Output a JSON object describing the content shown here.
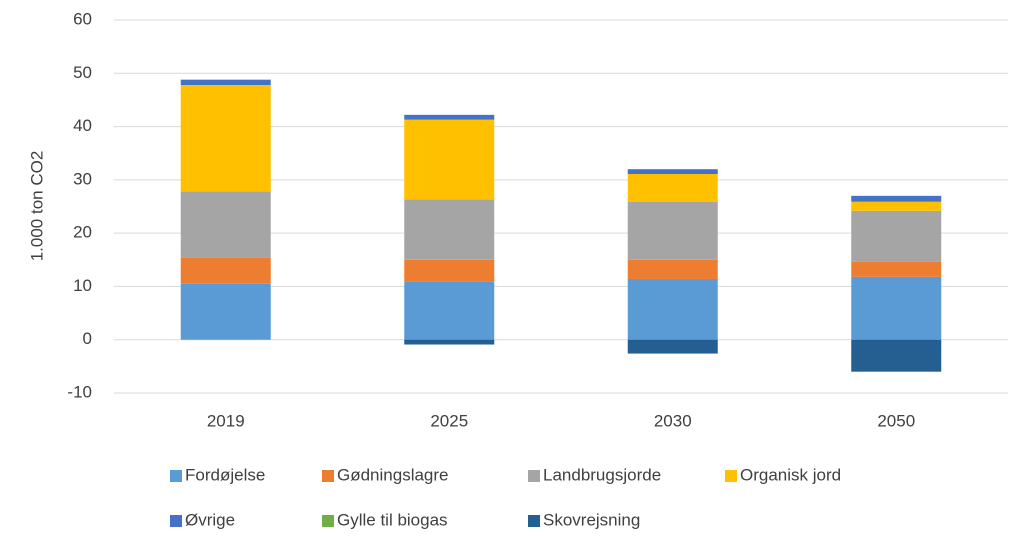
{
  "chart_data": {
    "type": "stacked_bar",
    "y_label": "1.000 ton CO2",
    "categories": [
      "2019",
      "2025",
      "2030",
      "2050"
    ],
    "series": [
      {
        "name": "Fordøjelse",
        "color": "#5b9bd5",
        "values": [
          10.5,
          10.9,
          11.4,
          11.8
        ]
      },
      {
        "name": "Gødningslagre",
        "color": "#ed7d31",
        "values": [
          4.9,
          4.1,
          3.6,
          2.8
        ]
      },
      {
        "name": "Landbrugsjorde",
        "color": "#a5a5a5",
        "values": [
          12.4,
          11.3,
          10.9,
          9.6
        ]
      },
      {
        "name": "Organisk jord",
        "color": "#ffc000",
        "values": [
          20.0,
          15.0,
          5.2,
          1.7
        ]
      },
      {
        "name": "Øvrige",
        "color": "#4472c4",
        "values": [
          1.0,
          0.9,
          0.9,
          1.1
        ]
      },
      {
        "name": "Gylle til biogas",
        "color": "#70ad47",
        "values": [
          0,
          0,
          0,
          0
        ]
      },
      {
        "name": "Skovrejsning",
        "color": "#255e91",
        "values": [
          0,
          -0.9,
          -2.6,
          -6.0
        ]
      }
    ],
    "ylim": [
      -10,
      60
    ],
    "yticks": [
      -10,
      0,
      10,
      20,
      30,
      40,
      50,
      60
    ],
    "grid": true
  }
}
